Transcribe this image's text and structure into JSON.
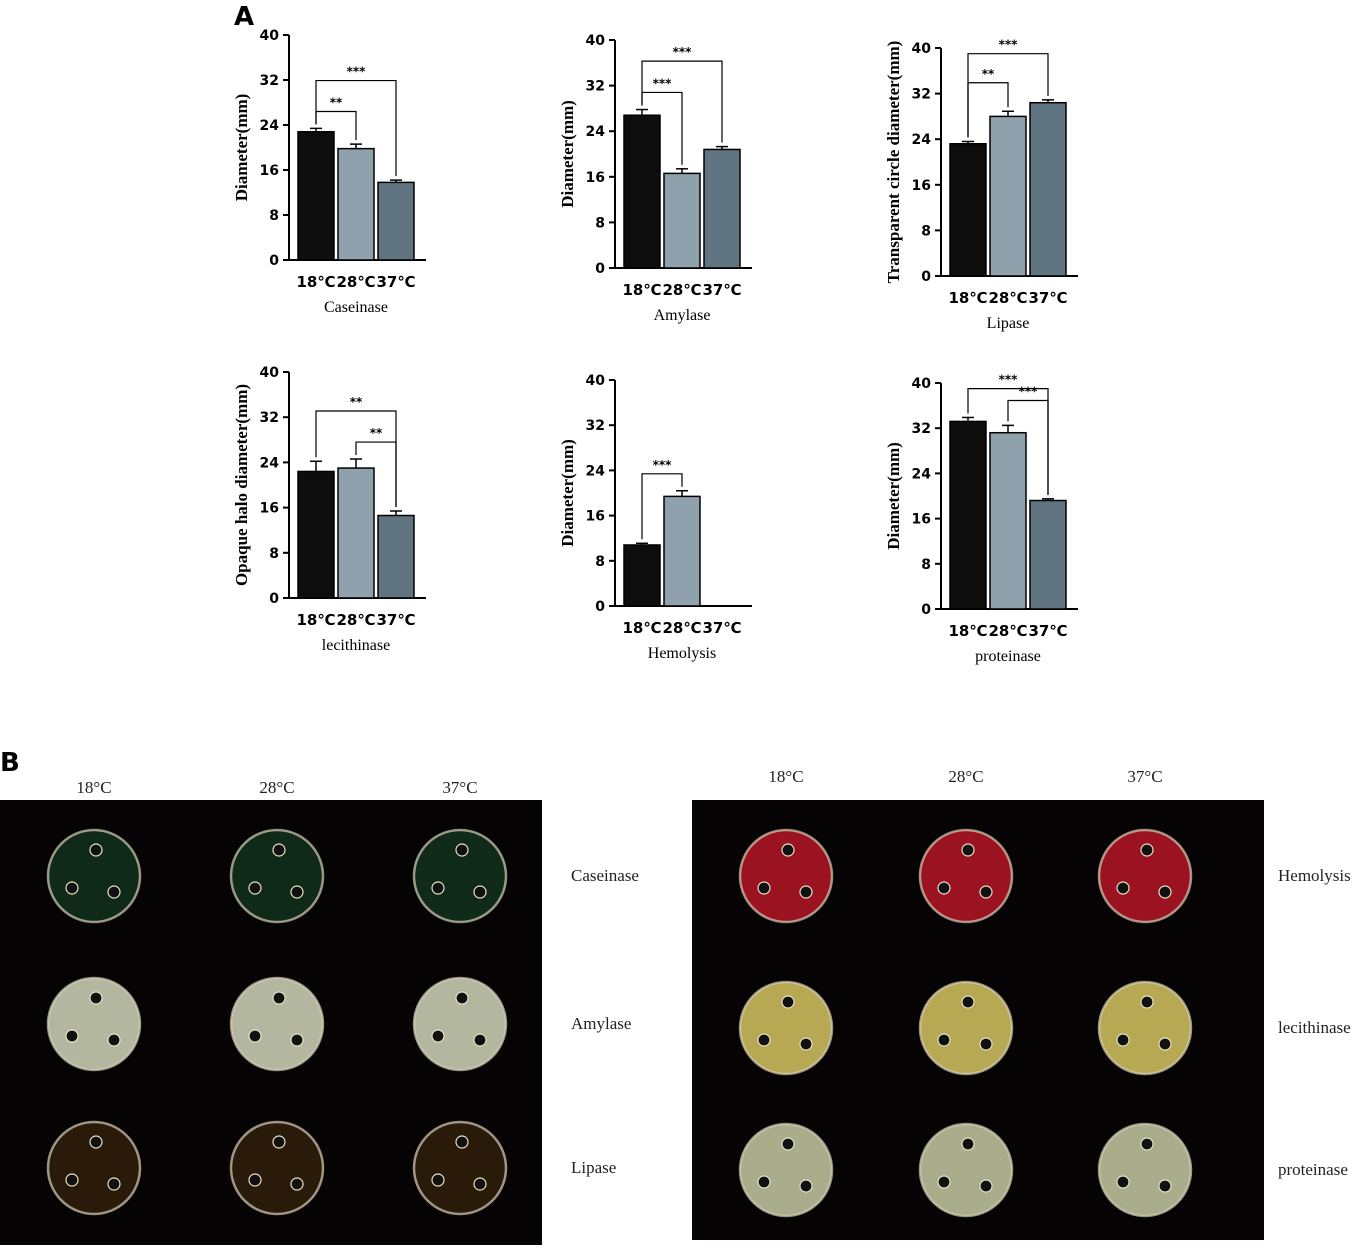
{
  "panel_a_label": "A",
  "panel_b_label": "B",
  "chart_data": [
    {
      "type": "bar",
      "xlabel": "Caseinase",
      "ylabel": "Diameter(mm)",
      "categories": [
        "18℃",
        "28℃",
        "37℃"
      ],
      "values": [
        22.8,
        19.8,
        13.8
      ],
      "errors": [
        0.6,
        0.8,
        0.4
      ],
      "ylim": [
        0,
        40
      ],
      "yticks": [
        0,
        8,
        16,
        24,
        32,
        40
      ],
      "significance": [
        {
          "from": 0,
          "to": 1,
          "label": "**"
        },
        {
          "from": 0,
          "to": 2,
          "label": "***"
        }
      ]
    },
    {
      "type": "bar",
      "xlabel": "Amylase",
      "ylabel": "Diameter(mm)",
      "categories": [
        "18℃",
        "28℃",
        "37℃"
      ],
      "values": [
        26.8,
        16.6,
        20.8
      ],
      "errors": [
        1.0,
        0.8,
        0.5
      ],
      "ylim": [
        0,
        40
      ],
      "yticks": [
        0,
        8,
        16,
        24,
        32,
        40
      ],
      "significance": [
        {
          "from": 0,
          "to": 1,
          "label": "***"
        },
        {
          "from": 0,
          "to": 2,
          "label": "***"
        }
      ]
    },
    {
      "type": "bar",
      "xlabel": "Lipase",
      "ylabel": "Transparent circle diameter(mm)",
      "categories": [
        "18℃",
        "28℃",
        "37℃"
      ],
      "values": [
        23.2,
        28.0,
        30.4
      ],
      "errors": [
        0.4,
        0.9,
        0.5
      ],
      "ylim": [
        0,
        40
      ],
      "yticks": [
        0,
        8,
        16,
        24,
        32,
        40
      ],
      "significance": [
        {
          "from": 0,
          "to": 1,
          "label": "**"
        },
        {
          "from": 0,
          "to": 2,
          "label": "***"
        }
      ]
    },
    {
      "type": "bar",
      "xlabel": "lecithinase",
      "ylabel": "Opaque halo diameter(mm)",
      "categories": [
        "18℃",
        "28℃",
        "37℃"
      ],
      "values": [
        22.4,
        23.0,
        14.6
      ],
      "errors": [
        1.8,
        1.6,
        0.8
      ],
      "ylim": [
        0,
        40
      ],
      "yticks": [
        0,
        8,
        16,
        24,
        32,
        40
      ],
      "significance": [
        {
          "from": 0,
          "to": 2,
          "label": "**"
        },
        {
          "from": 1,
          "to": 2,
          "label": "**"
        }
      ]
    },
    {
      "type": "bar",
      "xlabel": "Hemolysis",
      "ylabel": "Diameter(mm)",
      "categories": [
        "18℃",
        "28℃",
        "37℃"
      ],
      "values": [
        10.8,
        19.4,
        0
      ],
      "errors": [
        0.3,
        1.0,
        0
      ],
      "ylim": [
        0,
        40
      ],
      "yticks": [
        0,
        8,
        16,
        24,
        32,
        40
      ],
      "significance": [
        {
          "from": 0,
          "to": 1,
          "label": "***"
        }
      ]
    },
    {
      "type": "bar",
      "xlabel": "proteinase",
      "ylabel": "Diameter(mm)",
      "categories": [
        "18℃",
        "28℃",
        "37℃"
      ],
      "values": [
        33.2,
        31.2,
        19.2
      ],
      "errors": [
        0.7,
        1.3,
        0.3
      ],
      "ylim": [
        0,
        40
      ],
      "yticks": [
        0,
        8,
        16,
        24,
        32,
        40
      ],
      "significance": [
        {
          "from": 0,
          "to": 2,
          "label": "***"
        },
        {
          "from": 1,
          "to": 2,
          "label": "***"
        }
      ]
    }
  ],
  "bar_colors": [
    "#0d0d0d",
    "#8fa1ad",
    "#5f7480"
  ],
  "plates": {
    "left": {
      "columns": [
        "18°C",
        "28°C",
        "37°C"
      ],
      "rows": [
        "Caseinase",
        "Amylase",
        "Lipase"
      ]
    },
    "right": {
      "columns": [
        "18°C",
        "28°C",
        "37°C"
      ],
      "rows": [
        "Hemolysis",
        "lecithinase",
        "proteinase"
      ]
    }
  },
  "plate_colors": {
    "Caseinase": "#0f2a18",
    "Amylase": "#b4b79f",
    "Lipase": "#2a1a0a",
    "Hemolysis": "#9b1220",
    "lecithinase": "#b7a954",
    "proteinase": "#a9ad8c"
  }
}
